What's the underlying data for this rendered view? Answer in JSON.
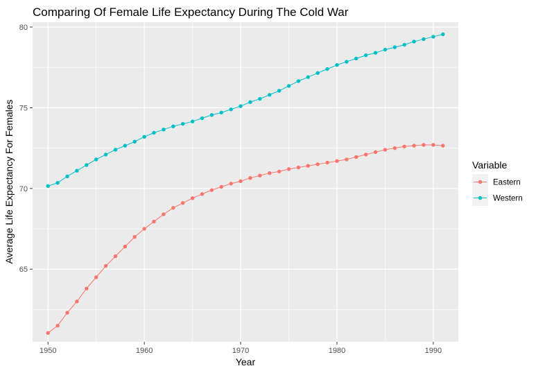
{
  "chart_data": {
    "type": "line",
    "title": "Comparing Of Female Life Expectancy During The Cold War",
    "xlabel": "Year",
    "ylabel": "Average Life Expectancy For Females",
    "xlim": [
      1948.4,
      1992.6
    ],
    "ylim": [
      60.5,
      80.3
    ],
    "x_ticks": [
      1950,
      1960,
      1970,
      1980,
      1990
    ],
    "y_ticks": [
      65,
      70,
      75,
      80
    ],
    "grid": true,
    "legend_title": "Variable",
    "legend_position": "right",
    "x": [
      1950,
      1951,
      1952,
      1953,
      1954,
      1955,
      1956,
      1957,
      1958,
      1959,
      1960,
      1961,
      1962,
      1963,
      1964,
      1965,
      1966,
      1967,
      1968,
      1969,
      1970,
      1971,
      1972,
      1973,
      1974,
      1975,
      1976,
      1977,
      1978,
      1979,
      1980,
      1981,
      1982,
      1983,
      1984,
      1985,
      1986,
      1987,
      1988,
      1989,
      1990,
      1991
    ],
    "series": [
      {
        "name": "Eastern",
        "color": "#F8766D",
        "values": [
          61.05,
          61.5,
          62.3,
          63.0,
          63.8,
          64.5,
          65.2,
          65.8,
          66.4,
          67.0,
          67.5,
          67.95,
          68.4,
          68.8,
          69.1,
          69.4,
          69.65,
          69.9,
          70.1,
          70.3,
          70.45,
          70.65,
          70.8,
          70.95,
          71.05,
          71.2,
          71.3,
          71.4,
          71.5,
          71.6,
          71.7,
          71.8,
          71.95,
          72.1,
          72.25,
          72.4,
          72.5,
          72.6,
          72.65,
          72.7,
          72.7,
          72.65
        ]
      },
      {
        "name": "Western",
        "color": "#00BFC4",
        "values": [
          70.15,
          70.35,
          70.75,
          71.1,
          71.45,
          71.8,
          72.1,
          72.4,
          72.65,
          72.9,
          73.2,
          73.45,
          73.65,
          73.85,
          74.0,
          74.15,
          74.35,
          74.55,
          74.7,
          74.9,
          75.1,
          75.35,
          75.55,
          75.8,
          76.05,
          76.35,
          76.65,
          76.9,
          77.15,
          77.4,
          77.65,
          77.85,
          78.05,
          78.25,
          78.4,
          78.6,
          78.75,
          78.9,
          79.1,
          79.25,
          79.4,
          79.55
        ]
      }
    ]
  }
}
